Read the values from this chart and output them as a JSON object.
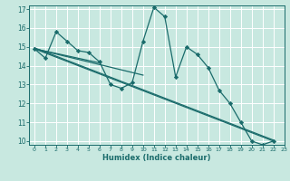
{
  "xlabel": "Humidex (Indice chaleur)",
  "xlim": [
    -0.5,
    23
  ],
  "ylim": [
    9.8,
    17.2
  ],
  "yticks": [
    10,
    11,
    12,
    13,
    14,
    15,
    16,
    17
  ],
  "xticks": [
    0,
    1,
    2,
    3,
    4,
    5,
    6,
    7,
    8,
    9,
    10,
    11,
    12,
    13,
    14,
    15,
    16,
    17,
    18,
    19,
    20,
    21,
    22,
    23
  ],
  "bg_color": "#c8e8e0",
  "grid_color": "#b0d8d0",
  "line_color": "#1a6b6b",
  "main_line_x": [
    0,
    1,
    2,
    3,
    4,
    5,
    6,
    7,
    8,
    9,
    10,
    11,
    12,
    13,
    14,
    15,
    16,
    17,
    18,
    19,
    20,
    21,
    22
  ],
  "main_line_y": [
    14.9,
    14.4,
    15.8,
    15.3,
    14.8,
    14.7,
    14.2,
    13.0,
    12.8,
    13.1,
    15.3,
    17.1,
    16.6,
    13.4,
    15.0,
    14.6,
    13.9,
    12.7,
    12.0,
    11.0,
    10.0,
    9.8,
    10.0
  ],
  "straight_lines": [
    {
      "x": [
        0,
        22
      ],
      "y": [
        14.9,
        10.0
      ]
    },
    {
      "x": [
        0,
        22
      ],
      "y": [
        14.9,
        10.0
      ]
    },
    {
      "x": [
        0,
        9
      ],
      "y": [
        14.9,
        13.5
      ]
    },
    {
      "x": [
        0,
        6
      ],
      "y": [
        14.9,
        14.2
      ]
    }
  ],
  "extra_lines": [
    {
      "x": [
        1,
        2,
        3,
        4,
        5,
        6
      ],
      "y": [
        14.4,
        15.8,
        15.3,
        14.8,
        14.7,
        14.2
      ]
    },
    {
      "x": [
        0,
        3,
        4,
        5,
        6,
        7,
        8,
        9,
        10
      ],
      "y": [
        14.9,
        15.3,
        14.8,
        14.7,
        14.2,
        13.0,
        12.8,
        13.1,
        15.3
      ]
    }
  ]
}
